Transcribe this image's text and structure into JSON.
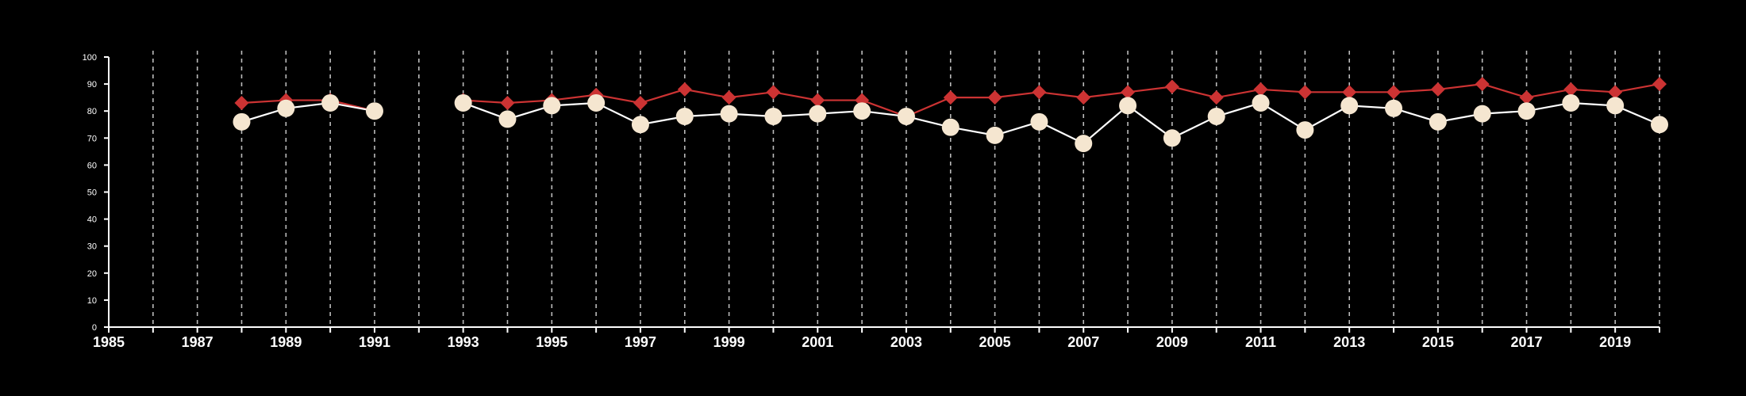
{
  "chart_data": {
    "type": "line",
    "x": [
      1988,
      1989,
      1990,
      1991,
      1993,
      1994,
      1995,
      1996,
      1997,
      1998,
      1999,
      2000,
      2001,
      2002,
      2003,
      2004,
      2005,
      2006,
      2007,
      2008,
      2009,
      2010,
      2011,
      2012,
      2013,
      2014,
      2015,
      2016,
      2017,
      2018,
      2019,
      2020
    ],
    "series": [
      {
        "marker": "diamond",
        "color": "#cc3333",
        "values": [
          83,
          84,
          84,
          80,
          84,
          83,
          84,
          86,
          83,
          88,
          85,
          87,
          84,
          84,
          78,
          85,
          85,
          87,
          85,
          87,
          89,
          85,
          88,
          87,
          87,
          87,
          88,
          90,
          85,
          88,
          87,
          90
        ]
      },
      {
        "marker": "circle",
        "color": "#f5e6d0",
        "line_color": "#ffffff",
        "values": [
          76,
          81,
          83,
          80,
          83,
          77,
          82,
          83,
          75,
          78,
          79,
          78,
          79,
          80,
          78,
          74,
          71,
          76,
          68,
          82,
          70,
          78,
          83,
          73,
          82,
          81,
          76,
          79,
          80,
          83,
          82,
          75
        ]
      }
    ],
    "xlim": [
      1985,
      2020
    ],
    "ylim": [
      0,
      100
    ],
    "x_ticks": [
      1985,
      1986,
      1987,
      1988,
      1989,
      1990,
      1991,
      1992,
      1993,
      1994,
      1995,
      1996,
      1997,
      1998,
      1999,
      2000,
      2001,
      2002,
      2003,
      2004,
      2005,
      2006,
      2007,
      2008,
      2009,
      2010,
      2011,
      2012,
      2013,
      2014,
      2015,
      2016,
      2017,
      2018,
      2019,
      2020
    ],
    "x_tick_labels": [
      "1985",
      "1987",
      "1989",
      "1991",
      "1993",
      "1995",
      "1997",
      "1999",
      "2001",
      "2003",
      "2005",
      "2007",
      "2009",
      "2011",
      "2013",
      "2015",
      "2017",
      "2019"
    ],
    "y_ticks": [
      0,
      10,
      20,
      30,
      40,
      50,
      60,
      70,
      80,
      90,
      100
    ],
    "y_tick_labels": [
      "0",
      "10",
      "20",
      "30",
      "40",
      "50",
      "60",
      "70",
      "80",
      "90",
      "100"
    ],
    "grid": "vertical dashed",
    "legend": "none",
    "background": "#000000",
    "title": "",
    "xlabel": "",
    "ylabel": ""
  }
}
